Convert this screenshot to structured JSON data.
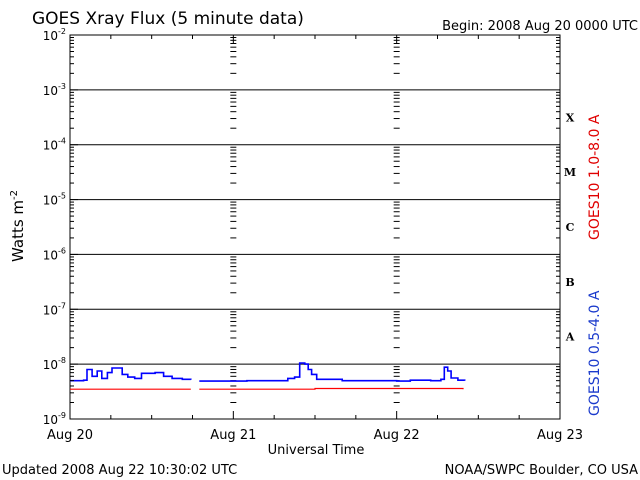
{
  "header": {
    "title": "GOES Xray Flux (5 minute data)",
    "begin": "Begin:  2008 Aug 20 0000 UTC"
  },
  "footer": {
    "updated": "Updated 2008 Aug 22 10:30:02 UTC",
    "credit": "NOAA/SWPC Boulder, CO USA"
  },
  "chart_data": {
    "type": "line",
    "title": "GOES Xray Flux (5 minute data)",
    "xlabel": "Universal Time",
    "ylabel": "Watts m",
    "ylabel_sup": "-2",
    "y_scale": "log",
    "ylim": [
      1e-09,
      0.01
    ],
    "xlim": [
      "2008-08-20T00:00",
      "2008-08-23T00:00"
    ],
    "x_ticks": [
      {
        "label": "Aug 20",
        "t": "2008-08-20T00:00"
      },
      {
        "label": "Aug 21",
        "t": "2008-08-21T00:00"
      },
      {
        "label": "Aug 22",
        "t": "2008-08-22T00:00"
      },
      {
        "label": "Aug 23",
        "t": "2008-08-23T00:00"
      }
    ],
    "y_ticks": [
      {
        "base": "10",
        "exp": "-2",
        "value": 0.01
      },
      {
        "base": "10",
        "exp": "-3",
        "value": 0.001
      },
      {
        "base": "10",
        "exp": "-4",
        "value": 0.0001
      },
      {
        "base": "10",
        "exp": "-5",
        "value": 1e-05
      },
      {
        "base": "10",
        "exp": "-6",
        "value": 1e-06
      },
      {
        "base": "10",
        "exp": "-7",
        "value": 1e-07
      },
      {
        "base": "10",
        "exp": "-8",
        "value": 1e-08
      },
      {
        "base": "10",
        "exp": "-9",
        "value": 1e-09
      }
    ],
    "flare_classes": [
      {
        "label": "X",
        "lower": 0.0001,
        "upper": 0.001
      },
      {
        "label": "M",
        "lower": 1e-05,
        "upper": 0.0001
      },
      {
        "label": "C",
        "lower": 1e-06,
        "upper": 1e-05
      },
      {
        "label": "B",
        "lower": 1e-07,
        "upper": 1e-06
      },
      {
        "label": "A",
        "lower": 1e-08,
        "upper": 1e-07
      }
    ],
    "grid": "horizontal lines at each decade; dashed vertical day markers",
    "series": [
      {
        "name": "GOES10 1.0-8.0 A",
        "color": "#ff0000",
        "segments": [
          [
            [
              "2008-08-20T00:00",
              3.5e-09
            ],
            [
              "2008-08-20T17:45",
              3.5e-09
            ]
          ],
          [
            [
              "2008-08-20T19:00",
              3.5e-09
            ],
            [
              "2008-08-21T09:00",
              3.5e-09
            ],
            [
              "2008-08-21T12:00",
              3.6e-09
            ],
            [
              "2008-08-22T09:45",
              3.5e-09
            ]
          ]
        ]
      },
      {
        "name": "GOES10 0.5-4.0 A",
        "color": "#0000ff",
        "segments": [
          [
            [
              "2008-08-20T00:00",
              5e-09
            ],
            [
              "2008-08-20T02:00",
              5.1e-09
            ],
            [
              "2008-08-20T02:30",
              8e-09
            ],
            [
              "2008-08-20T03:15",
              6e-09
            ],
            [
              "2008-08-20T04:00",
              7.5e-09
            ],
            [
              "2008-08-20T04:40",
              5.5e-09
            ],
            [
              "2008-08-20T05:30",
              7e-09
            ],
            [
              "2008-08-20T06:10",
              8.5e-09
            ],
            [
              "2008-08-20T07:00",
              8.5e-09
            ],
            [
              "2008-08-20T07:40",
              6.5e-09
            ],
            [
              "2008-08-20T08:30",
              5.8e-09
            ],
            [
              "2008-08-20T09:30",
              5.5e-09
            ],
            [
              "2008-08-20T10:30",
              6.8e-09
            ],
            [
              "2008-08-20T12:30",
              7e-09
            ],
            [
              "2008-08-20T13:45",
              6e-09
            ],
            [
              "2008-08-20T15:00",
              5.5e-09
            ],
            [
              "2008-08-20T16:30",
              5.3e-09
            ],
            [
              "2008-08-20T17:45",
              5.2e-09
            ]
          ],
          [
            [
              "2008-08-20T19:00",
              4.9e-09
            ],
            [
              "2008-08-21T02:00",
              5e-09
            ],
            [
              "2008-08-21T06:00",
              5e-09
            ],
            [
              "2008-08-21T08:00",
              5.5e-09
            ],
            [
              "2008-08-21T09:00",
              5.8e-09
            ],
            [
              "2008-08-21T09:45",
              1.05e-08
            ],
            [
              "2008-08-21T10:30",
              1e-08
            ],
            [
              "2008-08-21T11:00",
              8e-09
            ],
            [
              "2008-08-21T11:30",
              6.5e-09
            ],
            [
              "2008-08-21T12:15",
              5.3e-09
            ],
            [
              "2008-08-21T16:00",
              5e-09
            ],
            [
              "2008-08-21T20:00",
              5e-09
            ],
            [
              "2008-08-22T00:00",
              4.9e-09
            ],
            [
              "2008-08-22T02:00",
              5.1e-09
            ],
            [
              "2008-08-22T05:00",
              5e-09
            ],
            [
              "2008-08-22T06:30",
              5.3e-09
            ],
            [
              "2008-08-22T07:00",
              8.8e-09
            ],
            [
              "2008-08-22T07:30",
              7.5e-09
            ],
            [
              "2008-08-22T08:00",
              5.6e-09
            ],
            [
              "2008-08-22T09:00",
              5.1e-09
            ],
            [
              "2008-08-22T10:00",
              5e-09
            ]
          ]
        ]
      }
    ]
  }
}
